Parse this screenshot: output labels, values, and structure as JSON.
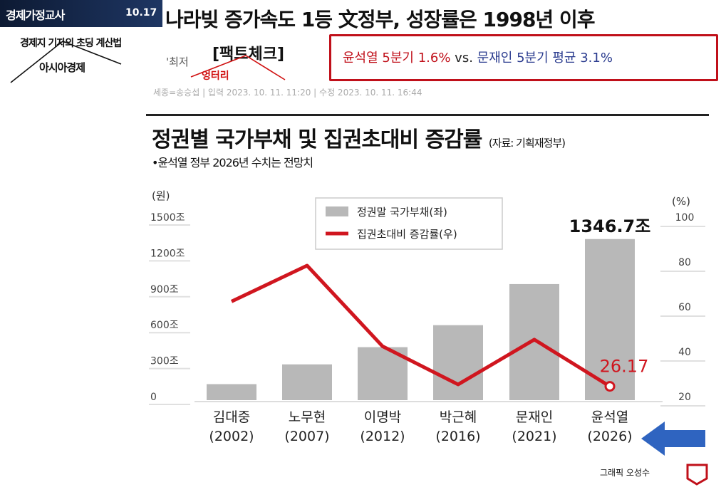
{
  "header": {
    "brand": "경제가정교사",
    "date": "10.17",
    "headline": "나라빚 증가속도 1등 文정부, 성장률은 1998년 이후",
    "subtitle": "경제지 기자의 초딩 계산법",
    "publisher": "아시아경제",
    "fragment": "'최저",
    "factcheck": "[팩트체크]",
    "annotation": "엉터리"
  },
  "compare": {
    "left": "윤석열 5분기 1.6%",
    "vs": "vs.",
    "right": "문재인 5분기 평균 3.1%"
  },
  "byline": "세종=송승섭 | 입력 2023. 10. 11. 11:20 | 수정 2023. 10. 11. 16:44",
  "chart_header": {
    "title": "정권별 국가부채 및 집권초대비 증감률",
    "source": "(자료: 기획재정부)",
    "note": "•윤석열 정부 2026년 수치는 전망치"
  },
  "credit": "그래픽 오성수",
  "colors": {
    "bar": "#b8b8b8",
    "line": "#d0161f",
    "arrow": "#2f64c0",
    "compare_border": "#c0101a"
  },
  "chart_data": {
    "type": "bar",
    "categories": [
      "김대중\n(2002)",
      "노무현\n(2007)",
      "이명박\n(2012)",
      "박근혜\n(2016)",
      "문재인\n(2021)",
      "윤석열\n(2026)"
    ],
    "series": [
      {
        "name": "정권말 국가부채(좌)",
        "type": "bar",
        "axis": "left",
        "values": [
          133.8,
          299.2,
          443.1,
          626.9,
          970.7,
          1346.7
        ]
      },
      {
        "name": "집권초대비 증감률(우)",
        "type": "line",
        "axis": "right",
        "values": [
          64,
          80,
          44,
          27,
          47,
          26.17
        ]
      }
    ],
    "yleft": {
      "label": "(원)",
      "ticks": [
        "0",
        "300조",
        "600조",
        "900조",
        "1200조",
        "1500조"
      ],
      "lim": [
        0,
        1500
      ]
    },
    "yright": {
      "label": "(%)",
      "ticks": [
        "20",
        "40",
        "60",
        "80",
        "100"
      ],
      "lim": [
        20,
        100
      ]
    },
    "labels": {
      "bar_last": "1346.7조",
      "line_last": "26.17"
    },
    "legend": "top-center"
  }
}
